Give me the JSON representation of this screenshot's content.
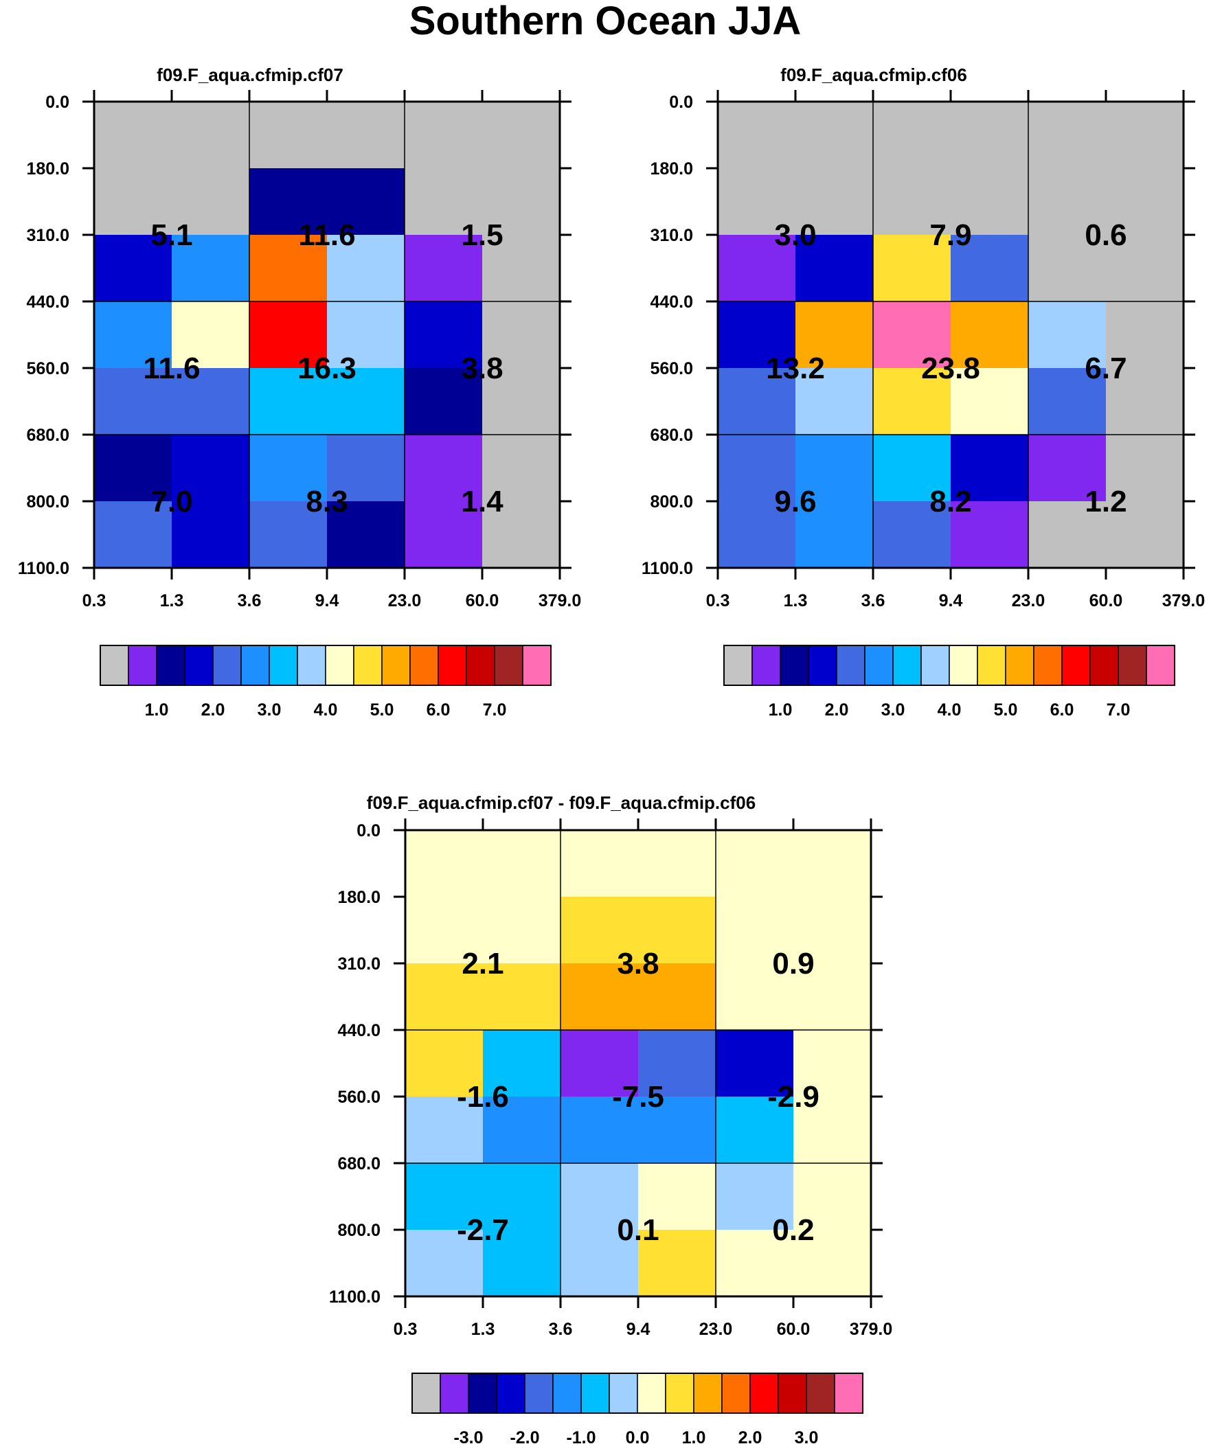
{
  "title": "Southern Ocean JJA",
  "colors": {
    "palette": [
      "#c4c4c4",
      "#8027f0",
      "#000094",
      "#0000cc",
      "#4169e1",
      "#1e8fff",
      "#00bfff",
      "#a0d0ff",
      "#ffffcc",
      "#ffe033",
      "#ffaa00",
      "#ff6e00",
      "#ff0000",
      "#c80000",
      "#a02424",
      "#ff6eb4"
    ],
    "missing": "#c0c0c0",
    "grid_line": "#000000"
  },
  "chart_data": [
    {
      "type": "heatmap",
      "title": "f09.F_aqua.cfmip.cf07",
      "x_tick_labels": [
        "0.3",
        "1.3",
        "3.6",
        "9.4",
        "23.0",
        "60.0",
        "379.0"
      ],
      "y_tick_labels": [
        "0.0",
        "180.0",
        "310.0",
        "440.0",
        "560.0",
        "680.0",
        "800.0",
        "1100.0"
      ],
      "color_index": [
        [
          0,
          0,
          0,
          0,
          0,
          0
        ],
        [
          0,
          0,
          2,
          2,
          0,
          0
        ],
        [
          3,
          5,
          11,
          7,
          1,
          0
        ],
        [
          5,
          8,
          12,
          7,
          3,
          0
        ],
        [
          4,
          4,
          6,
          6,
          2,
          0
        ],
        [
          2,
          3,
          5,
          4,
          1,
          0
        ],
        [
          4,
          3,
          4,
          2,
          1,
          0
        ]
      ],
      "box_values": [
        [
          "5.1",
          "11.6",
          "1.5"
        ],
        [
          "11.6",
          "16.3",
          "3.8"
        ],
        [
          "7.0",
          "8.3",
          "1.4"
        ]
      ],
      "colorbar": {
        "labels": [
          "1.0",
          "2.0",
          "3.0",
          "4.0",
          "5.0",
          "6.0",
          "7.0"
        ]
      }
    },
    {
      "type": "heatmap",
      "title": "f09.F_aqua.cfmip.cf06",
      "x_tick_labels": [
        "0.3",
        "1.3",
        "3.6",
        "9.4",
        "23.0",
        "60.0",
        "379.0"
      ],
      "y_tick_labels": [
        "0.0",
        "180.0",
        "310.0",
        "440.0",
        "560.0",
        "680.0",
        "800.0",
        "1100.0"
      ],
      "color_index": [
        [
          0,
          0,
          0,
          0,
          0,
          0
        ],
        [
          0,
          0,
          0,
          0,
          0,
          0
        ],
        [
          1,
          3,
          9,
          4,
          0,
          0
        ],
        [
          3,
          10,
          15,
          10,
          7,
          0
        ],
        [
          4,
          7,
          9,
          8,
          4,
          0
        ],
        [
          4,
          5,
          6,
          3,
          1,
          0
        ],
        [
          4,
          5,
          4,
          1,
          0,
          0
        ]
      ],
      "box_values": [
        [
          "3.0",
          "7.9",
          "0.6"
        ],
        [
          "13.2",
          "23.8",
          "6.7"
        ],
        [
          "9.6",
          "8.2",
          "1.2"
        ]
      ],
      "colorbar": {
        "labels": [
          "1.0",
          "2.0",
          "3.0",
          "4.0",
          "5.0",
          "6.0",
          "7.0"
        ]
      }
    },
    {
      "type": "heatmap",
      "title": "f09.F_aqua.cfmip.cf07 - f09.F_aqua.cfmip.cf06",
      "x_tick_labels": [
        "0.3",
        "1.3",
        "3.6",
        "9.4",
        "23.0",
        "60.0",
        "379.0"
      ],
      "y_tick_labels": [
        "0.0",
        "180.0",
        "310.0",
        "440.0",
        "560.0",
        "680.0",
        "800.0",
        "1100.0"
      ],
      "color_index": [
        [
          8,
          8,
          8,
          8,
          8,
          8
        ],
        [
          8,
          8,
          9,
          9,
          8,
          8
        ],
        [
          9,
          9,
          10,
          10,
          8,
          8
        ],
        [
          9,
          6,
          1,
          4,
          3,
          8
        ],
        [
          7,
          5,
          5,
          5,
          6,
          8
        ],
        [
          6,
          6,
          7,
          8,
          7,
          8
        ],
        [
          7,
          6,
          7,
          9,
          8,
          8
        ]
      ],
      "box_values": [
        [
          "2.1",
          "3.8",
          "0.9"
        ],
        [
          "-1.6",
          "-7.5",
          "-2.9"
        ],
        [
          "-2.7",
          "0.1",
          "0.2"
        ]
      ],
      "colorbar": {
        "labels": [
          "-3.0",
          "-2.0",
          "-1.0",
          "0.0",
          "1.0",
          "2.0",
          "3.0"
        ]
      }
    }
  ]
}
